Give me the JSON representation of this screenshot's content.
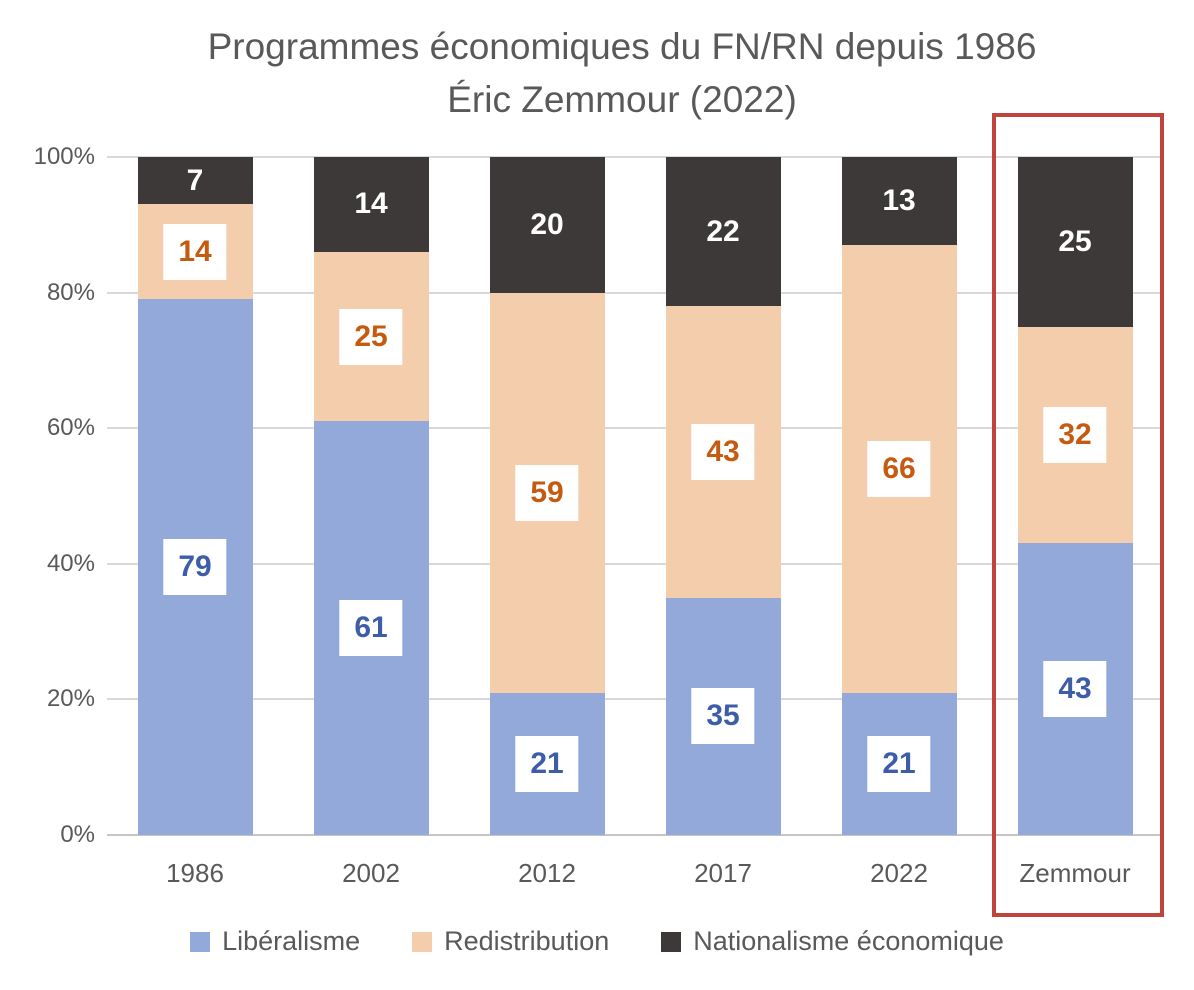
{
  "title": {
    "line1": "Programmes économiques du FN/RN depuis 1986",
    "line2": "Éric Zemmour (2022)"
  },
  "chart_data": {
    "type": "bar",
    "subtype": "stacked-100-percent",
    "title": "Programmes économiques du FN/RN depuis 1986 Éric Zemmour (2022)",
    "categories": [
      "1986",
      "2002",
      "2012",
      "2017",
      "2022",
      "Zemmour"
    ],
    "series": [
      {
        "name": "Libéralisme",
        "color": "#93A9D9",
        "label_color": "#3D5DA8",
        "label_boxed": true,
        "values": [
          79,
          61,
          21,
          35,
          21,
          43
        ]
      },
      {
        "name": "Redistribution",
        "color": "#F3CDAC",
        "label_color": "#C55A11",
        "label_boxed": true,
        "values": [
          14,
          25,
          59,
          43,
          66,
          32
        ]
      },
      {
        "name": "Nationalisme économique",
        "color": "#3D3939",
        "label_color": "#FFFFFF",
        "label_boxed": false,
        "values": [
          7,
          14,
          20,
          22,
          13,
          25
        ]
      }
    ],
    "y_axis": {
      "ticks": [
        "0%",
        "20%",
        "40%",
        "60%",
        "80%",
        "100%"
      ],
      "range": [
        0,
        100
      ],
      "grid": true
    },
    "x_axis": {
      "label": ""
    },
    "legend": {
      "position": "bottom",
      "entries": [
        "Libéralisme",
        "Redistribution",
        "Nationalisme économique"
      ]
    },
    "highlight": {
      "category": "Zemmour",
      "box_color": "#C0443C"
    },
    "text_color": "#595959",
    "gridline_color": "#D9D9D9"
  }
}
